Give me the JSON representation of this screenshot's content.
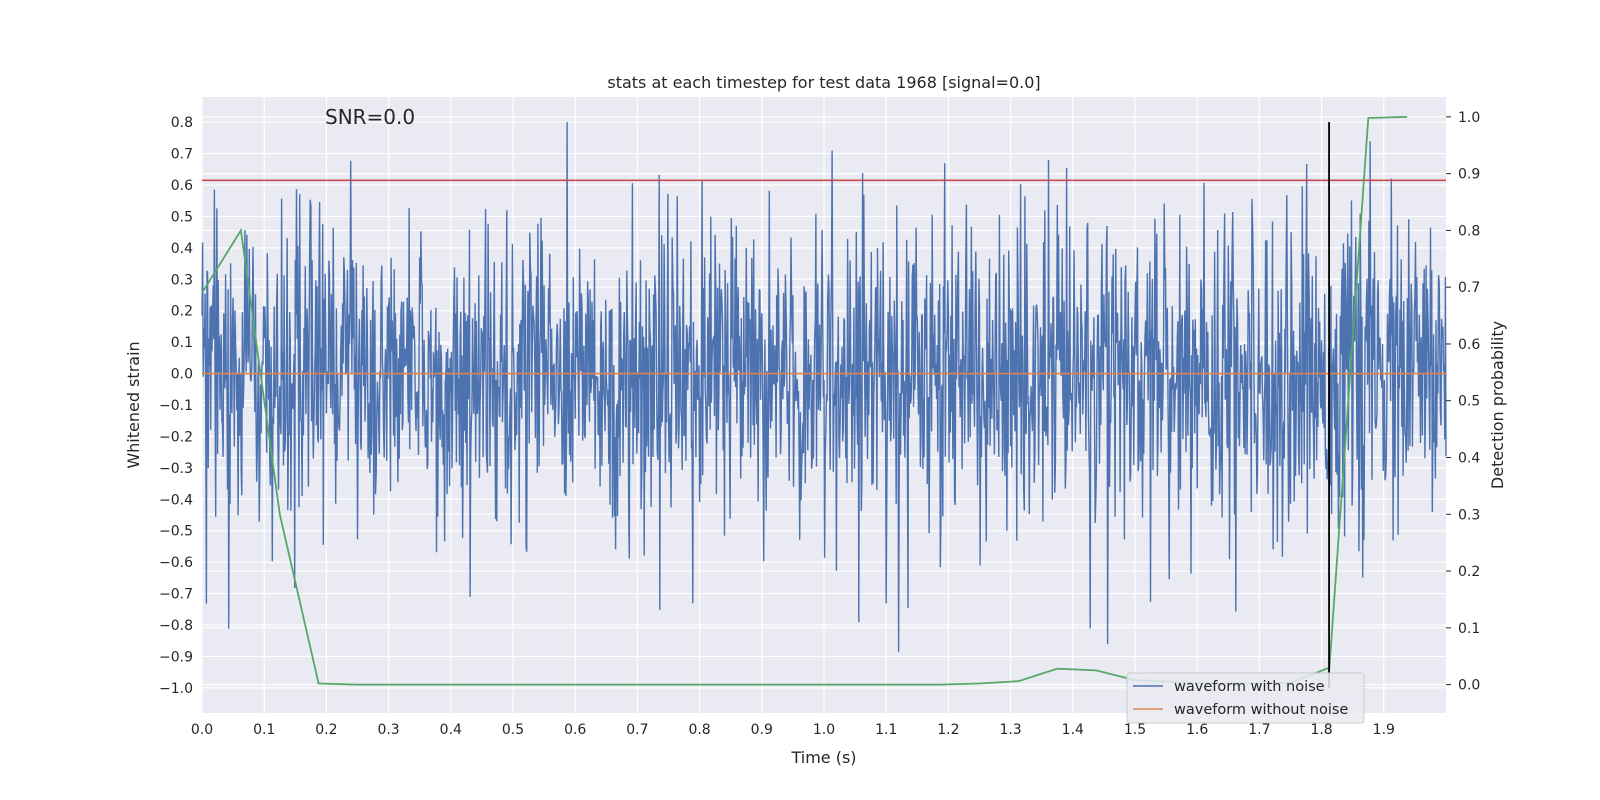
{
  "chart_data": {
    "type": "line",
    "title": "stats at each timestep for test data 1968 [signal=0.0]",
    "xlabel": "Time (s)",
    "ylabel_left": "Whitened strain",
    "ylabel_right": "Detection probability",
    "xlim": [
      0.0,
      2.0
    ],
    "ylim_left": [
      -1.08,
      0.88
    ],
    "ylim_right": [
      -0.05,
      1.035
    ],
    "x_ticks": [
      "0.0",
      "0.1",
      "0.2",
      "0.3",
      "0.4",
      "0.5",
      "0.6",
      "0.7",
      "0.8",
      "0.9",
      "1.0",
      "1.1",
      "1.2",
      "1.3",
      "1.4",
      "1.5",
      "1.6",
      "1.7",
      "1.8",
      "1.9"
    ],
    "y_ticks_left": [
      "0.8",
      "0.7",
      "0.6",
      "0.5",
      "0.4",
      "0.3",
      "0.2",
      "0.1",
      "0.0",
      "−0.1",
      "−0.2",
      "−0.3",
      "−0.4",
      "−0.5",
      "−0.6",
      "−0.7",
      "−0.8",
      "−0.9",
      "−1.0"
    ],
    "y_ticks_right": [
      "1.0",
      "0.9",
      "0.8",
      "0.7",
      "0.6",
      "0.5",
      "0.4",
      "0.3",
      "0.2",
      "0.1",
      "0.0"
    ],
    "grid": true,
    "annotation": "SNR=0.0",
    "threshold_line": {
      "axis": "left",
      "y": 0.615,
      "color": "#c44e52"
    },
    "vertical_line": {
      "x": 1.812,
      "y_from": -1.0,
      "y_to": 0.8,
      "color": "#000000"
    },
    "noise_series": {
      "name": "waveform with noise",
      "color": "#4c72b0",
      "x_start": 0.0,
      "x_end": 2.0,
      "std": 0.245,
      "clip": [
        -1.02,
        0.8
      ]
    },
    "clean_series": {
      "name": "waveform without noise",
      "color": "#dd8452",
      "x": [
        0.0,
        2.0
      ],
      "y": [
        0.0,
        0.0
      ]
    },
    "probability_series": {
      "axis": "right",
      "color": "#55a868",
      "x": [
        0.0,
        0.0625,
        0.125,
        0.1875,
        0.25,
        0.3125,
        0.375,
        0.4375,
        0.5,
        0.5625,
        0.625,
        0.6875,
        0.75,
        0.8125,
        0.875,
        0.9375,
        1.0,
        1.0625,
        1.125,
        1.1875,
        1.25,
        1.3125,
        1.375,
        1.4375,
        1.5,
        1.5625,
        1.625,
        1.6875,
        1.75,
        1.8125,
        1.875,
        1.9375
      ],
      "y": [
        0.69,
        0.8,
        0.3,
        0.002,
        0.0,
        0.0,
        0.0,
        0.0,
        0.0,
        0.0,
        0.0,
        0.0,
        0.0,
        0.0,
        0.0,
        0.0,
        0.0,
        0.0,
        0.0,
        0.0,
        0.002,
        0.006,
        0.028,
        0.025,
        0.008,
        0.005,
        0.002,
        0.002,
        0.003,
        0.03,
        0.998,
        1.0
      ]
    },
    "legend": {
      "placement": "bottom-right",
      "entries": [
        {
          "label": "waveform with noise",
          "color": "#4c72b0"
        },
        {
          "label": "waveform without noise",
          "color": "#dd8452"
        }
      ]
    }
  }
}
